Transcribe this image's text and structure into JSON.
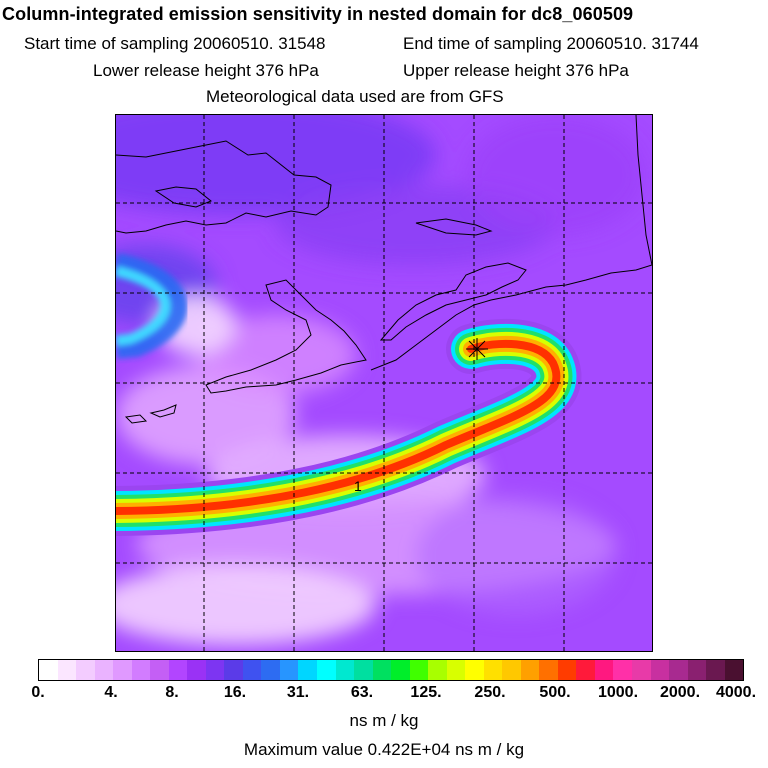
{
  "header": {
    "title": "Column-integrated emission sensitivity in nested domain for dc8_060509",
    "start_time": "Start time of sampling 20060510. 31548",
    "end_time": "End time of sampling 20060510. 31744",
    "lower_release": "Lower release height  376 hPa",
    "upper_release": "Upper release height  376 hPa",
    "met_data": "Meteorological data used are from GFS"
  },
  "map": {
    "plume_label": "1",
    "background_color": "#a44bff",
    "coastline_color": "#000000",
    "grid_color": "#000000"
  },
  "colorbar": {
    "colors": [
      "#ffffff",
      "#fbe6ff",
      "#f3ccff",
      "#eab3ff",
      "#e099ff",
      "#d27cff",
      "#c45ff5",
      "#b245ff",
      "#9a32f5",
      "#7d35f2",
      "#5b3be8",
      "#3f52f0",
      "#2d6cf2",
      "#2795ff",
      "#00d6ff",
      "#00ffff",
      "#00e8d0",
      "#00dfa0",
      "#00e060",
      "#00ee2a",
      "#40ff00",
      "#a8ff00",
      "#d8ff00",
      "#ffff00",
      "#ffe000",
      "#ffc800",
      "#ffa000",
      "#ff7000",
      "#ff3c00",
      "#ff1a3a",
      "#ff1880",
      "#ff30a8",
      "#e83aa8",
      "#c830a0",
      "#a82a90",
      "#8a2070",
      "#6a1850",
      "#4a1030"
    ],
    "tick_labels": [
      "0.",
      "4.",
      "8.",
      "16.",
      "31.",
      "63.",
      "125.",
      "250.",
      "500.",
      "1000.",
      "2000.",
      "4000."
    ],
    "units": "ns m / kg"
  },
  "footer": {
    "max_value": "Maximum value  0.422E+04 ns m / kg"
  }
}
